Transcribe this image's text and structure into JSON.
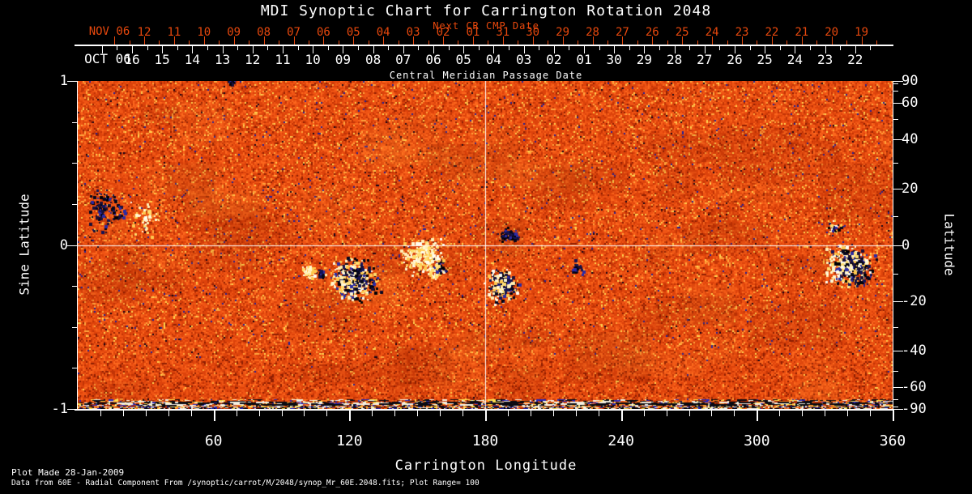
{
  "title": "MDI Synoptic Chart for Carrington Rotation 2048",
  "colors": {
    "accent_orange": "#e8480d",
    "text_white": "#ffffff",
    "background": "#000000",
    "map_quiet_sun": "#e0470c"
  },
  "top_axis": {
    "caption": "Next CR CMP Date",
    "next_month": "NOV 06",
    "next_dates": [
      "12",
      "11",
      "10",
      "09",
      "08",
      "07",
      "06",
      "05",
      "04",
      "03",
      "02",
      "01",
      "31",
      "30",
      "29",
      "28",
      "27",
      "26",
      "25",
      "24",
      "23",
      "22",
      "21",
      "20",
      "19"
    ],
    "month": "OCT 06",
    "cmp_dates": [
      "16",
      "15",
      "14",
      "13",
      "12",
      "11",
      "10",
      "09",
      "08",
      "07",
      "06",
      "05",
      "04",
      "03",
      "02",
      "01",
      "30",
      "29",
      "28",
      "27",
      "26",
      "25",
      "24",
      "23",
      "22"
    ],
    "axis_label": "Central Meridian Passage Date"
  },
  "left_axis": {
    "label": "Sine Latitude",
    "tick_labels": [
      "1",
      "0",
      "-1"
    ]
  },
  "right_axis": {
    "label": "Latitude",
    "tick_labels": [
      "90",
      "60",
      "40",
      "20",
      "0",
      "-20",
      "-40",
      "-60",
      "-90"
    ]
  },
  "bottom_axis": {
    "label": "Carrington Longitude",
    "tick_labels": [
      "60",
      "120",
      "180",
      "240",
      "300",
      "360"
    ]
  },
  "footer": {
    "plot_made": "Plot Made 28-Jan-2009",
    "data_source": "Data from 60E - Radial Component From  /synoptic/carrot/M/2048/synop_Mr_60E.2048.fits; Plot Range=  100"
  },
  "chart_data": {
    "type": "heatmap",
    "title": "MDI Synoptic Chart for Carrington Rotation 2048",
    "carrington_rotation": 2048,
    "xlabel": "Carrington Longitude",
    "ylabel_left": "Sine Latitude",
    "ylabel_right": "Latitude",
    "x_range_deg": [
      0,
      360
    ],
    "y_range_sine_latitude": [
      -1,
      1
    ],
    "x_major_ticks_deg": [
      60,
      120,
      180,
      240,
      300,
      360
    ],
    "x_minor_tick_step_deg": 10,
    "left_major_ticks_sine": [
      1,
      0,
      -1
    ],
    "left_minor_ticks_sine": [
      0.75,
      0.5,
      0.25,
      -0.25,
      -0.5,
      -0.75
    ],
    "right_major_ticks_deg": [
      90,
      60,
      40,
      20,
      0,
      -20,
      -40,
      -60,
      -90
    ],
    "right_minor_ticks_deg": [
      80,
      70,
      50,
      30,
      10,
      -10,
      -30,
      -50,
      -70,
      -80
    ],
    "grid_lines": {
      "longitude_deg": 180,
      "sine_latitude": 0
    },
    "plot_range_gauss": 100,
    "cmp_month": "OCT 06",
    "next_cr_cmp_month": "NOV 06",
    "color_scale": {
      "positive_field": "#fffdf0",
      "negative_field": "#0a0b30",
      "quiet_sun": "#e0470c"
    },
    "active_regions": [
      {
        "lon": 12,
        "lat": 12,
        "rx_deg": 11,
        "ry_deg": 9,
        "polarity": "negative",
        "strength": 0.18
      },
      {
        "lon": 30,
        "lat": 9,
        "rx_deg": 8,
        "ry_deg": 8,
        "polarity": "positive",
        "strength": 0.12
      },
      {
        "lon": 68,
        "lat": 84,
        "rx_deg": 3,
        "ry_deg": 14,
        "polarity": "negative",
        "strength": 0.9
      },
      {
        "lon": 102,
        "lat": -9,
        "rx_deg": 3.5,
        "ry_deg": 3.2,
        "polarity": "positive",
        "strength": 1.0
      },
      {
        "lon": 107,
        "lat": -10,
        "rx_deg": 2,
        "ry_deg": 2,
        "polarity": "negative",
        "strength": 0.8
      },
      {
        "lon": 122,
        "lat": -12,
        "rx_deg": 13,
        "ry_deg": 9,
        "polarity": "mixed",
        "strength": 0.75
      },
      {
        "lon": 152,
        "lat": -4,
        "rx_deg": 12,
        "ry_deg": 8,
        "polarity": "positive",
        "strength": 0.4
      },
      {
        "lon": 158,
        "lat": -8,
        "rx_deg": 6,
        "ry_deg": 5,
        "polarity": "mixed",
        "strength": 0.35
      },
      {
        "lon": 190,
        "lat": 3.5,
        "rx_deg": 6,
        "ry_deg": 3,
        "polarity": "negative",
        "strength": 0.7
      },
      {
        "lon": 187,
        "lat": -14,
        "rx_deg": 8,
        "ry_deg": 8,
        "polarity": "mixed",
        "strength": 0.8
      },
      {
        "lon": 220,
        "lat": -8,
        "rx_deg": 4,
        "ry_deg": 3.5,
        "polarity": "negative",
        "strength": 0.3
      },
      {
        "lon": 334,
        "lat": 6,
        "rx_deg": 4,
        "ry_deg": 3,
        "polarity": "mixed",
        "strength": 0.5
      },
      {
        "lon": 341,
        "lat": -7,
        "rx_deg": 12,
        "ry_deg": 9,
        "polarity": "mixed",
        "strength": 0.8
      }
    ]
  }
}
